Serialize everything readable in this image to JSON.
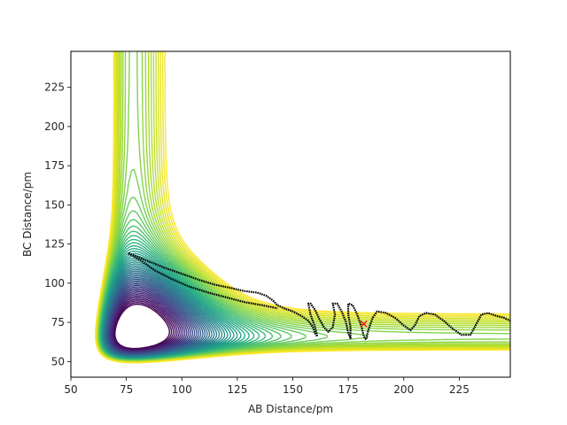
{
  "chart_data": {
    "type": "contour",
    "title": "",
    "xlabel": "AB Distance/pm",
    "ylabel": "BC Distance/pm",
    "xlim": [
      50,
      248
    ],
    "ylim": [
      40,
      248
    ],
    "xticks": [
      50,
      75,
      100,
      125,
      150,
      175,
      200,
      225
    ],
    "yticks": [
      50,
      75,
      100,
      125,
      150,
      175,
      200,
      225
    ],
    "colormap": [
      "#440154",
      "#482878",
      "#3e4989",
      "#31688e",
      "#26828e",
      "#1f9e89",
      "#35b779",
      "#6ece58",
      "#b5de2b",
      "#fde725"
    ],
    "contours": {
      "count": 54,
      "base_level": 0.06,
      "step": 0.022,
      "description_levels": "U = (1-exp(-a(x-x0)))^2 + (1-exp(-a(y-y0)))^2 with saddle near x=93"
    },
    "trajectory": {
      "color": "#000000",
      "points": [
        [
          76,
          119
        ],
        [
          80,
          117
        ],
        [
          85,
          114
        ],
        [
          92,
          110
        ],
        [
          100,
          106
        ],
        [
          108,
          102
        ],
        [
          115,
          99
        ],
        [
          122,
          97
        ],
        [
          128,
          95
        ],
        [
          134,
          94
        ],
        [
          138,
          92
        ],
        [
          141,
          89
        ],
        [
          143,
          86
        ],
        [
          146,
          84
        ],
        [
          150,
          82
        ],
        [
          154,
          79
        ],
        [
          157,
          76
        ],
        [
          159,
          72
        ],
        [
          160,
          68
        ],
        [
          161,
          66
        ],
        [
          160,
          72
        ],
        [
          158,
          80
        ],
        [
          157,
          87
        ],
        [
          158,
          87
        ],
        [
          160,
          83
        ],
        [
          162,
          77
        ],
        [
          164,
          72
        ],
        [
          166,
          69
        ],
        [
          168,
          72
        ],
        [
          169,
          80
        ],
        [
          168,
          87
        ],
        [
          170,
          87
        ],
        [
          172,
          82
        ],
        [
          174,
          75
        ],
        [
          175,
          68
        ],
        [
          176,
          65
        ],
        [
          176,
          72
        ],
        [
          175,
          80
        ],
        [
          175,
          87
        ],
        [
          177,
          86
        ],
        [
          179,
          80
        ],
        [
          181,
          72
        ],
        [
          182,
          66
        ],
        [
          183,
          64
        ],
        [
          184,
          70
        ],
        [
          186,
          78
        ],
        [
          188,
          82
        ],
        [
          192,
          81
        ],
        [
          196,
          78
        ],
        [
          200,
          73
        ],
        [
          203,
          70
        ],
        [
          205,
          73
        ],
        [
          207,
          79
        ],
        [
          210,
          81
        ],
        [
          214,
          80
        ],
        [
          218,
          76
        ],
        [
          222,
          71
        ],
        [
          226,
          67
        ],
        [
          230,
          67
        ],
        [
          232,
          72
        ],
        [
          235,
          80
        ],
        [
          238,
          81
        ],
        [
          242,
          79
        ],
        [
          245,
          78
        ],
        [
          248,
          76
        ]
      ],
      "return_points": [
        [
          76,
          119
        ],
        [
          82,
          114
        ],
        [
          88,
          108
        ],
        [
          95,
          103
        ],
        [
          103,
          98
        ],
        [
          112,
          94
        ],
        [
          120,
          91
        ],
        [
          128,
          88
        ],
        [
          136,
          86
        ],
        [
          143,
          84
        ]
      ]
    },
    "marker": {
      "x": 182,
      "y": 74,
      "symbol": "x",
      "color": "#ff0000"
    }
  }
}
